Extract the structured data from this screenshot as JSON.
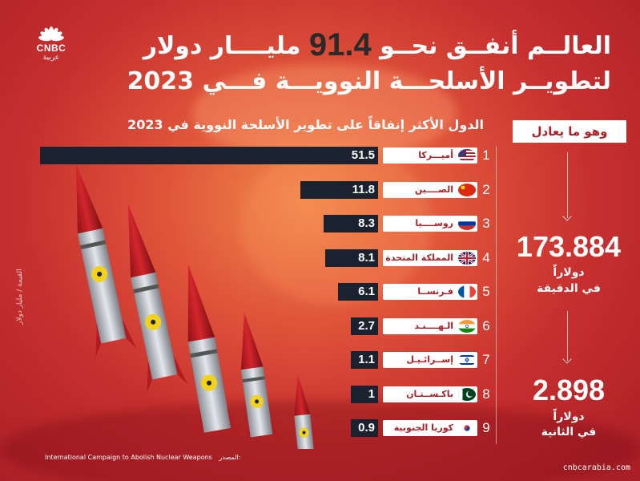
{
  "brand": {
    "logo_line1": "CNBC",
    "logo_line2": "عربية"
  },
  "headline": {
    "line1_part1": "العالــم أنفــق نحــو",
    "line1_number": "91.4",
    "line1_part2": "مليــــار دولار",
    "line2": "لتطويــر الأسلحـــة النوويـــة فـــي 2023"
  },
  "chart_data": {
    "type": "bar",
    "title": "الدول الأكثر إنفاقاً على تطوير الأسلحة النووية في 2023",
    "ylabel": "القيمة / مليار دولار",
    "categories": [
      "أميـــركا",
      "الصــــين",
      "روســــيا",
      "المملكة المتحدة",
      "فـرنســا",
      "الـهــــنـد",
      "إســرائـيـل",
      "باكـســتـان",
      "كوريا الجنوبية"
    ],
    "ranks": [
      "1",
      "2",
      "3",
      "4",
      "5",
      "6",
      "7",
      "8",
      "9"
    ],
    "values": [
      51.5,
      11.8,
      8.3,
      8.1,
      6.1,
      2.7,
      1.1,
      1,
      0.9
    ],
    "value_labels": [
      "51.5",
      "11.8",
      "8.3",
      "8.1",
      "6.1",
      "2.7",
      "1.1",
      "1",
      "0.9"
    ],
    "flags": [
      "us-flag",
      "china-flag",
      "russia-flag",
      "uk-flag",
      "france-flag",
      "india-flag",
      "israel-flag",
      "pakistan-flag",
      "south-korea-flag"
    ],
    "xlim": [
      0,
      51.5
    ],
    "bar_color": "#1a2230",
    "label_color": "#b01e25"
  },
  "equivalent": {
    "tag": "وهو ما يعادل",
    "per_minute_value": "173.884",
    "per_minute_unit": "دولاراً",
    "per_minute_label": "في الدقيقة",
    "per_second_value": "2.898",
    "per_second_unit": "دولاراً",
    "per_second_label": "في الثانية"
  },
  "source": {
    "label": "المصدر:",
    "name": "International Campaign to Abolish Nuclear Weapons"
  },
  "site": "cnbcarabia.com",
  "colors": {
    "accent": "#b01e25",
    "background": "#c8302f",
    "bar": "#1a2230"
  }
}
